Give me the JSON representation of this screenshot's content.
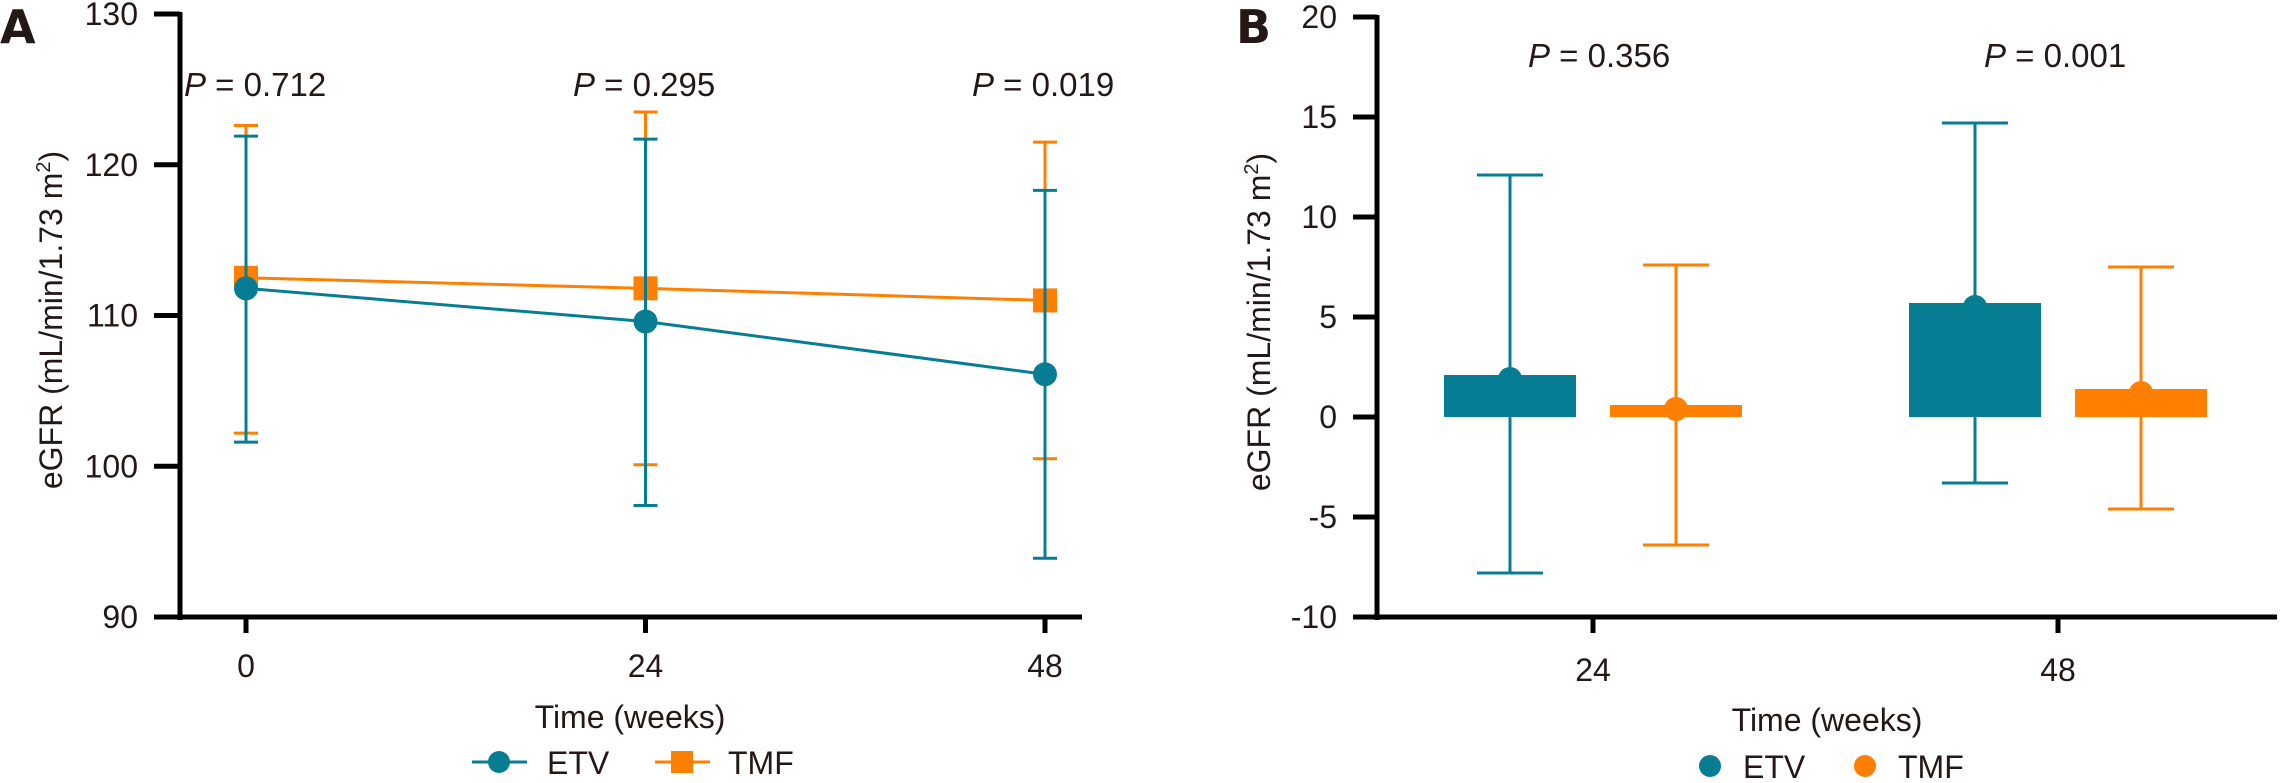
{
  "colors": {
    "ETV": "#077D93",
    "TMF": "#FF7F00",
    "axis": "#000000",
    "text": "#231815"
  },
  "chart_data": [
    {
      "panel": "A",
      "type": "line",
      "title": "",
      "xlabel": "Time (weeks)",
      "ylabel": "eGFR (mL/min/1.73 m2)",
      "ylabel_main": "eGFR (mL/min/1.73 m",
      "ylabel_sup": "2",
      "ylabel_close": ")",
      "x": [
        0,
        24,
        48
      ],
      "x_tick_labels": [
        "0",
        "24",
        "48"
      ],
      "ylim": [
        90,
        130
      ],
      "y_ticks": [
        90,
        100,
        110,
        120,
        130
      ],
      "y_tick_labels": [
        "90",
        "100",
        "110",
        "120",
        "130"
      ],
      "grid": false,
      "legend_position": "bottom-center",
      "series": [
        {
          "name": "ETV",
          "marker": "circle",
          "values": [
            111.8,
            109.6,
            106.1
          ],
          "error_upper": [
            121.9,
            121.7,
            118.3
          ],
          "error_lower": [
            101.6,
            97.4,
            93.9
          ]
        },
        {
          "name": "TMF",
          "marker": "square",
          "values": [
            112.5,
            111.8,
            111.0
          ],
          "error_upper": [
            122.6,
            123.5,
            121.5
          ],
          "error_lower": [
            102.2,
            100.1,
            100.5
          ]
        }
      ],
      "annotations": [
        {
          "x": 0,
          "label": "P",
          "text": " = 0.712"
        },
        {
          "x": 24,
          "label": "P",
          "text": " = 0.295"
        },
        {
          "x": 48,
          "label": "P",
          "text": " = 0.019"
        }
      ]
    },
    {
      "panel": "B",
      "type": "bar",
      "title": "",
      "xlabel": "Time (weeks)",
      "ylabel": "eGFR (mL/min/1.73 m2)",
      "ylabel_main": "eGFR (mL/min/1.73 m",
      "ylabel_sup": "2",
      "ylabel_close": ")",
      "categories": [
        "24",
        "48"
      ],
      "ylim": [
        -10,
        20
      ],
      "y_ticks": [
        -10,
        -5,
        0,
        5,
        10,
        15,
        20
      ],
      "y_tick_labels": [
        "-10",
        "-5",
        "0",
        "5",
        "10",
        "15",
        "20"
      ],
      "grid": false,
      "legend_position": "bottom-center",
      "series": [
        {
          "name": "ETV",
          "values": [
            2.1,
            5.7
          ],
          "mean_points": [
            2.2,
            5.8
          ],
          "error_upper": [
            12.1,
            14.7
          ],
          "error_lower": [
            -7.8,
            -3.3
          ]
        },
        {
          "name": "TMF",
          "values": [
            0.6,
            1.4
          ],
          "mean_points": [
            0.7,
            1.5
          ],
          "error_upper": [
            7.6,
            7.5
          ],
          "error_lower": [
            -6.4,
            -4.6
          ]
        }
      ],
      "annotations": [
        {
          "category": "24",
          "label": "P",
          "text": " = 0.356"
        },
        {
          "category": "48",
          "label": "P",
          "text": " = 0.001"
        }
      ]
    }
  ],
  "panels": {
    "A": {
      "letter": "A"
    },
    "B": {
      "letter": "B"
    }
  },
  "legend": {
    "A": [
      {
        "name": "ETV",
        "marker": "line-circle"
      },
      {
        "name": "TMF",
        "marker": "line-square"
      }
    ],
    "B": [
      {
        "name": "ETV",
        "marker": "circle"
      },
      {
        "name": "TMF",
        "marker": "circle"
      }
    ]
  }
}
